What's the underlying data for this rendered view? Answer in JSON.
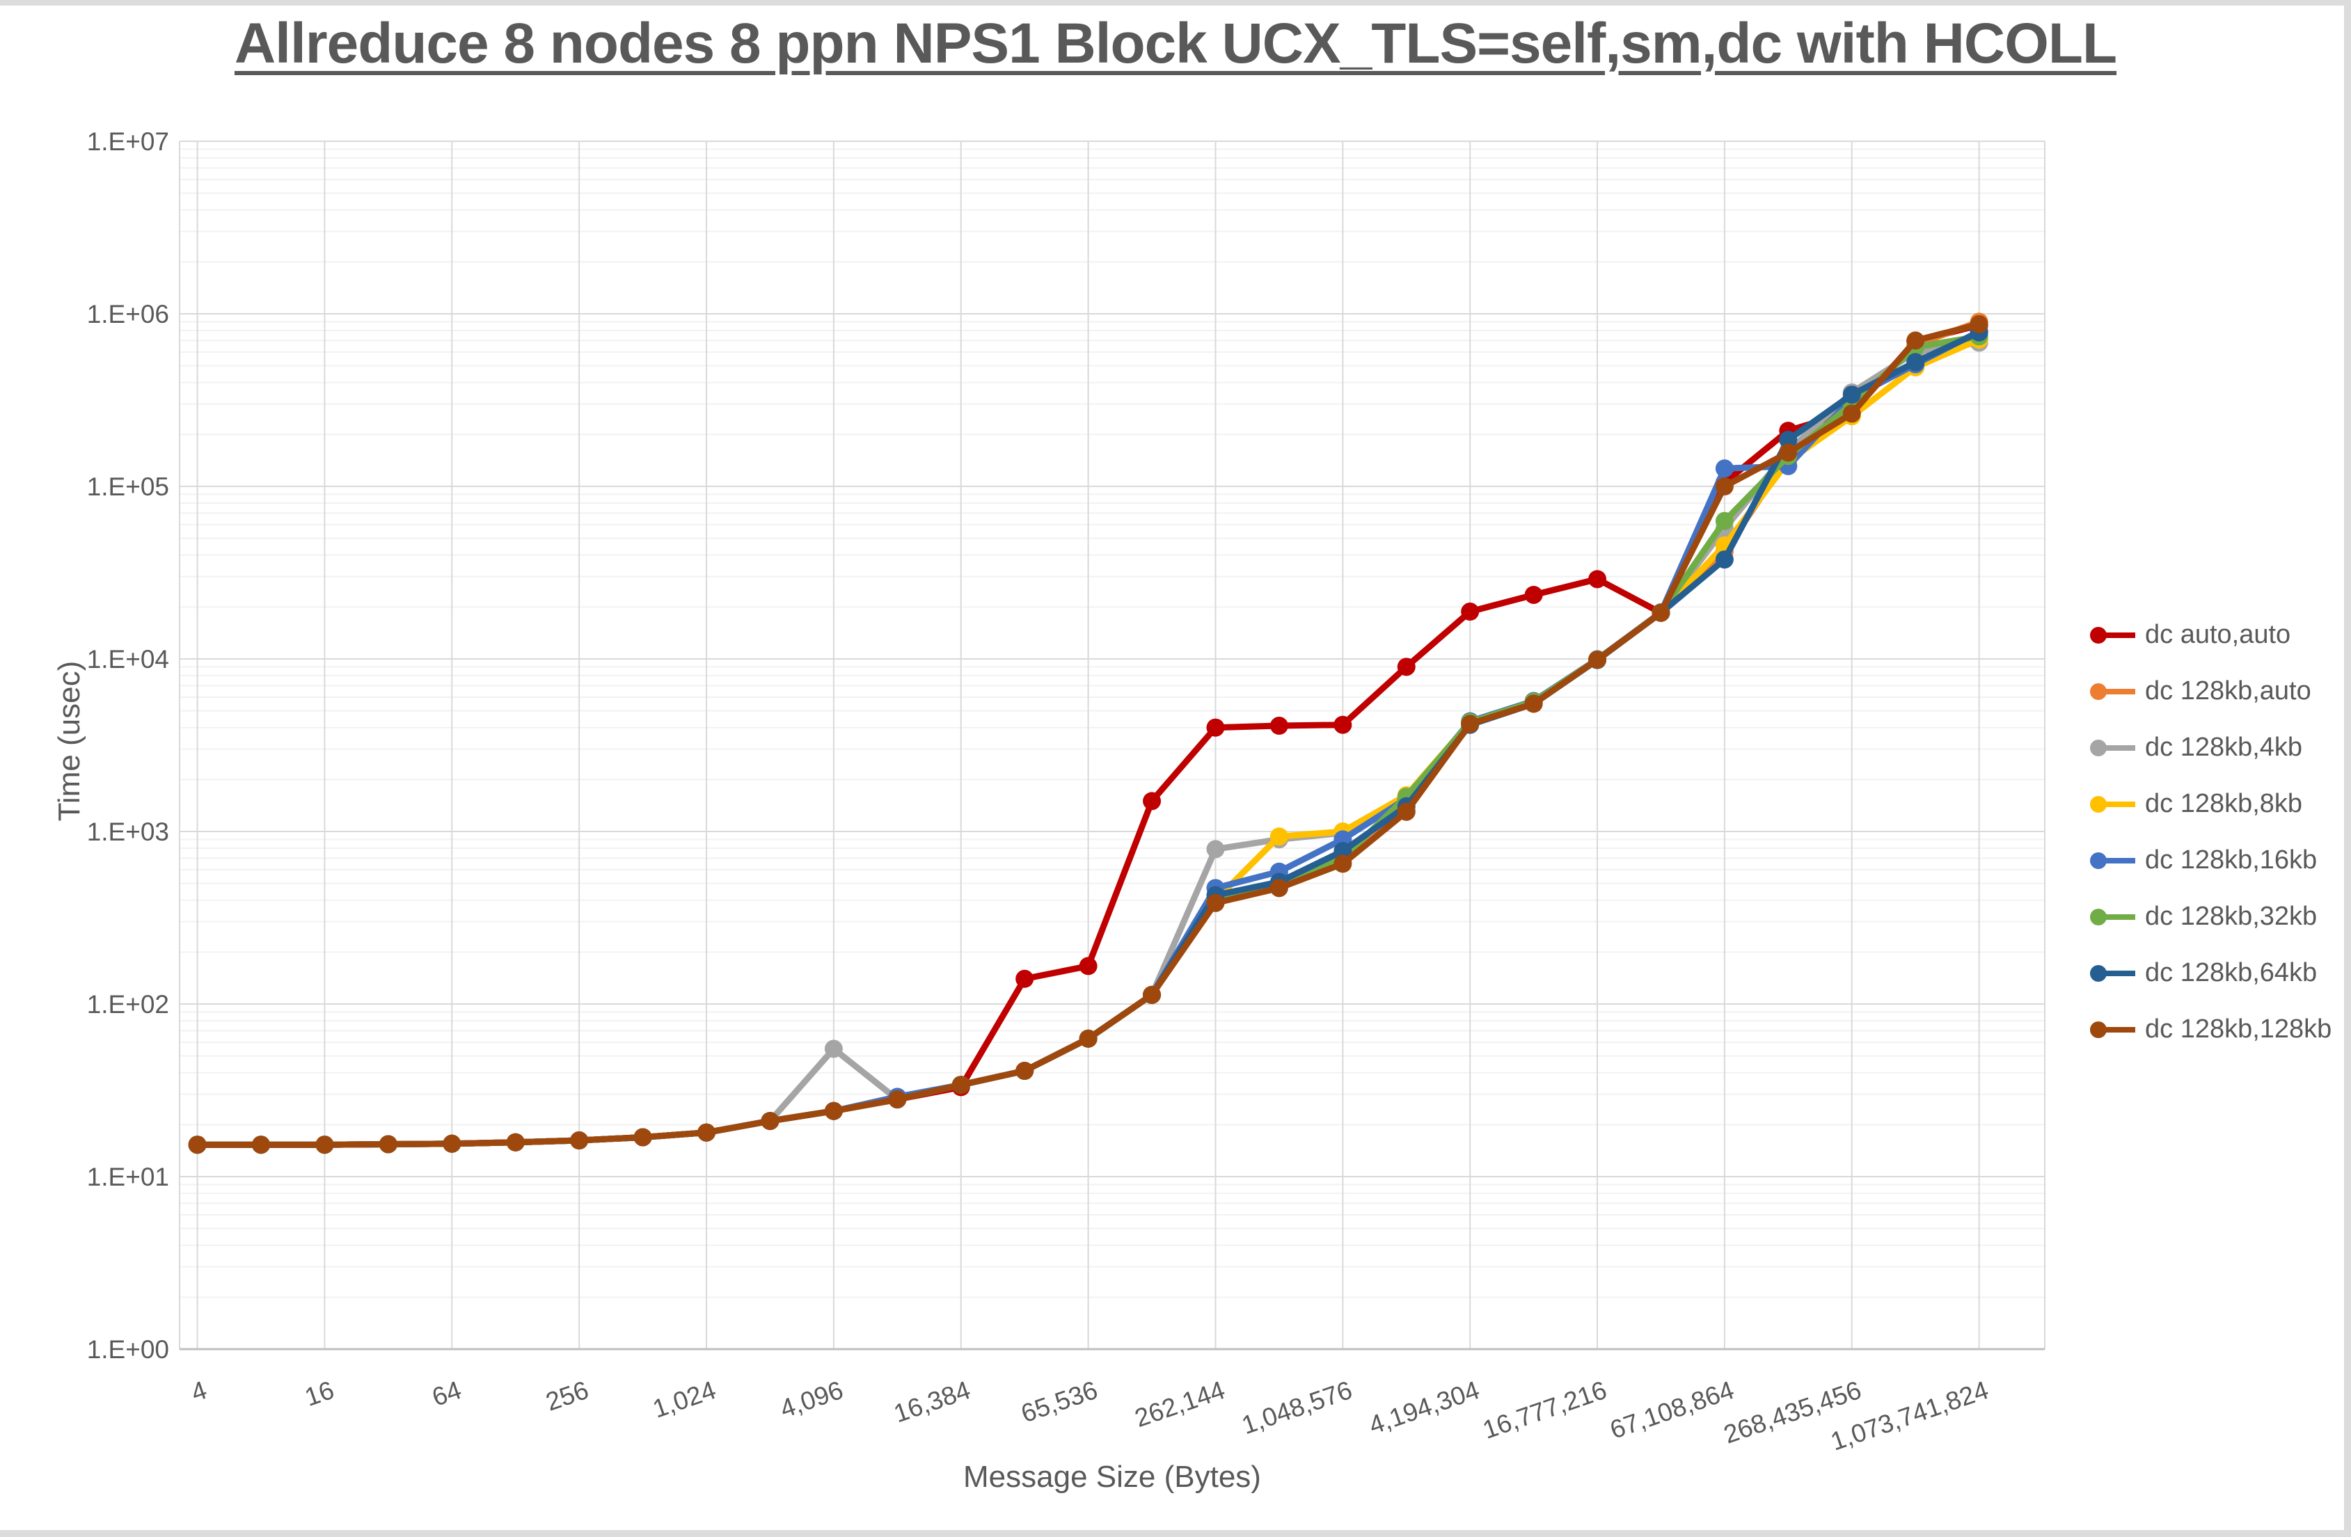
{
  "title": "Allreduce 8 nodes 8 ppn NPS1 Block UCX_TLS=self,sm,dc with HCOLL",
  "chart_data": {
    "type": "line",
    "title": "Allreduce 8 nodes 8 ppn NPS1 Block UCX_TLS=self,sm,dc with HCOLL",
    "xlabel": "Message Size (Bytes)",
    "ylabel": "Time (usec)",
    "x_scale": "log2",
    "y_scale": "log10",
    "y_range": [
      1,
      10000000
    ],
    "grid": true,
    "legend_position": "right",
    "y_tick_labels": [
      "1.E+00",
      "1.E+01",
      "1.E+02",
      "1.E+03",
      "1.E+04",
      "1.E+05",
      "1.E+06",
      "1.E+07"
    ],
    "x_tick_labels": [
      "4",
      "16",
      "64",
      "256",
      "1,024",
      "4,096",
      "16,384",
      "65,536",
      "262,144",
      "1,048,576",
      "4,194,304",
      "16,777,216",
      "67,108,864",
      "268,435,456",
      "1,073,741,824"
    ],
    "x": [
      4,
      8,
      16,
      32,
      64,
      128,
      256,
      512,
      1024,
      2048,
      4096,
      8192,
      16384,
      32768,
      65536,
      131072,
      262144,
      524288,
      1048576,
      2097152,
      4194304,
      8388608,
      16777216,
      33554432,
      67108864,
      134217728,
      268435456,
      536870912,
      1073741824
    ],
    "series": [
      {
        "name": "dc auto,auto",
        "color": "#C00000",
        "values": [
          15.3,
          15.3,
          15.3,
          15.4,
          15.5,
          15.8,
          16.2,
          16.9,
          18,
          21,
          24,
          28,
          33,
          140,
          166,
          1500,
          4000,
          4100,
          4150,
          9000,
          18800,
          23500,
          29000,
          18500,
          105000,
          210000,
          272000,
          690000,
          860000
        ]
      },
      {
        "name": "dc 128kb,auto",
        "color": "#ED7D31",
        "values": [
          15.3,
          15.3,
          15.3,
          15.4,
          15.5,
          15.8,
          16.2,
          16.9,
          18,
          21,
          24,
          28,
          34,
          41,
          63,
          113,
          395,
          480,
          660,
          1320,
          4200,
          5600,
          9900,
          18500,
          42000,
          148000,
          285000,
          660000,
          900000
        ]
      },
      {
        "name": "dc 128kb,4kb",
        "color": "#A5A5A5",
        "values": [
          15.3,
          15.3,
          15.3,
          15.4,
          15.5,
          15.8,
          16.2,
          16.9,
          18,
          21,
          55,
          28,
          34,
          41,
          63,
          113,
          790,
          900,
          980,
          1600,
          4250,
          5600,
          9900,
          18500,
          57000,
          160000,
          350000,
          600000,
          680000
        ]
      },
      {
        "name": "dc 128kb,8kb",
        "color": "#FFC000",
        "values": [
          15.3,
          15.3,
          15.3,
          15.4,
          15.5,
          15.8,
          16.2,
          16.9,
          18,
          21,
          24,
          28,
          34,
          41,
          63,
          113,
          400,
          935,
          1000,
          1620,
          4300,
          5700,
          9900,
          18600,
          45500,
          140000,
          255000,
          490000,
          710000
        ]
      },
      {
        "name": "dc 128kb,16kb",
        "color": "#4472C4",
        "values": [
          15.3,
          15.3,
          15.3,
          15.4,
          15.5,
          15.8,
          16.2,
          16.9,
          18,
          21,
          24,
          29,
          34,
          41,
          63,
          113,
          470,
          585,
          900,
          1550,
          4350,
          5700,
          9950,
          18600,
          127000,
          131000,
          325000,
          510000,
          790000
        ]
      },
      {
        "name": "dc 128kb,32kb",
        "color": "#70AD47",
        "values": [
          15.3,
          15.3,
          15.3,
          15.4,
          15.5,
          15.8,
          16.2,
          16.9,
          18,
          21,
          24,
          28,
          34,
          41,
          63,
          113,
          390,
          490,
          700,
          1590,
          4300,
          5650,
          9900,
          18550,
          63000,
          150000,
          300000,
          640000,
          740000
        ]
      },
      {
        "name": "dc 128kb,64kb",
        "color": "#255E91",
        "values": [
          15.3,
          15.3,
          15.3,
          15.4,
          15.5,
          15.8,
          16.2,
          16.9,
          18,
          21,
          24,
          28,
          34,
          41,
          63,
          113,
          427,
          510,
          770,
          1400,
          4150,
          5500,
          9850,
          18500,
          37700,
          186000,
          340000,
          525000,
          780000
        ]
      },
      {
        "name": "dc 128kb,128kb",
        "color": "#9E480E",
        "values": [
          15.3,
          15.3,
          15.3,
          15.4,
          15.5,
          15.8,
          16.2,
          16.9,
          18,
          21,
          24,
          28,
          34,
          41,
          63,
          113,
          385,
          470,
          650,
          1300,
          4200,
          5500,
          9900,
          18500,
          100000,
          157000,
          264000,
          700000,
          870000
        ]
      }
    ]
  }
}
